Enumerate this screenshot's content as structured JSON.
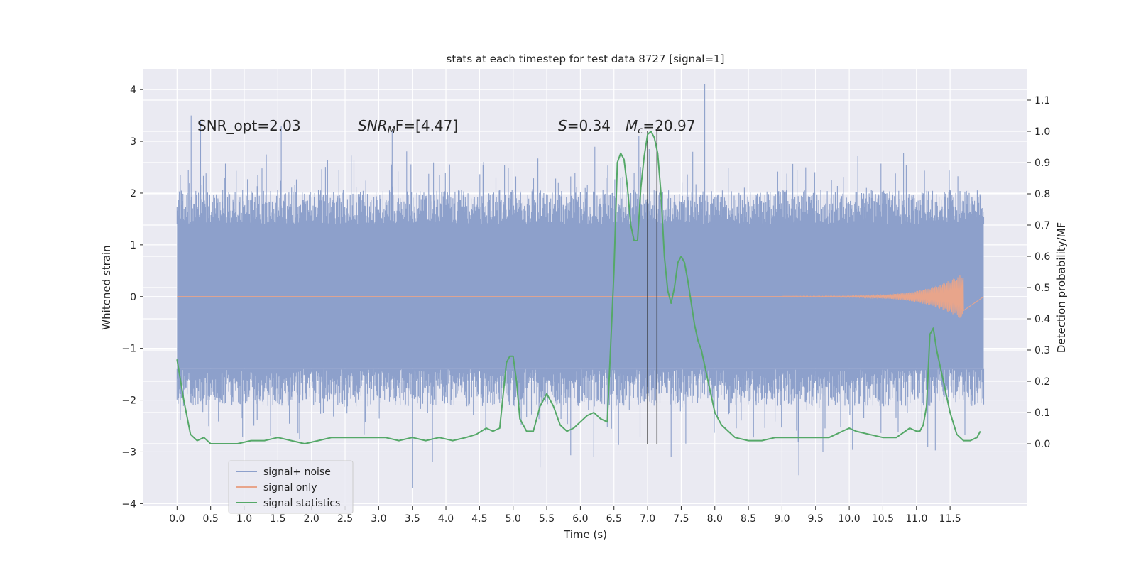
{
  "chart_data": {
    "type": "line",
    "title": "stats at each timestep for test data 8727 [signal=1]",
    "xlabel": "Time (s)",
    "ylabel": "Whitened strain",
    "ylabel_right": "Detection probability/MF",
    "xlim": [
      -0.5,
      12.65
    ],
    "ylim": [
      -4.05,
      4.4
    ],
    "ylim_right": [
      -0.2,
      1.2
    ],
    "x_ticks": [
      "0.0",
      "0.5",
      "1.0",
      "1.5",
      "2.0",
      "2.5",
      "3.0",
      "3.5",
      "4.0",
      "4.5",
      "5.0",
      "5.5",
      "6.0",
      "6.5",
      "7.0",
      "7.5",
      "8.0",
      "8.5",
      "9.0",
      "9.5",
      "10.0",
      "10.5",
      "11.0",
      "11.5"
    ],
    "y_ticks": [
      "−4",
      "−3",
      "−2",
      "−1",
      "0",
      "1",
      "2",
      "3",
      "4"
    ],
    "y_ticks_right": [
      "0.0",
      "0.1",
      "0.2",
      "0.3",
      "0.4",
      "0.5",
      "0.6",
      "0.7",
      "0.8",
      "0.9",
      "1.0",
      "1.1"
    ],
    "grid": true,
    "legend_position": "lower-left",
    "annotations": {
      "snr_opt": "SNR_opt=2.03",
      "snr_mf_base": "SNR",
      "snr_mf_sub": "M",
      "snr_mf_rest": "F=[4.47]",
      "s_var": "S",
      "s_rest": "=0.34",
      "mc_var": "M",
      "mc_sub": "c",
      "mc_rest": "=20.97"
    },
    "vertical_lines_x": [
      7.0,
      7.14
    ],
    "series": [
      {
        "name": "signal+ noise",
        "axis": "left",
        "color": "#8da0cb",
        "band": {
          "x_start": 0.0,
          "x_end": 12.0,
          "inner_low": -1.4,
          "inner_high": 1.4,
          "envelope_high": 2.0,
          "envelope_low": -2.0,
          "spike_max": 4.1,
          "spike_min": -3.7
        }
      },
      {
        "name": "signal only",
        "axis": "left",
        "color": "#e8a58b",
        "chirp": {
          "x_start": 9.0,
          "x_end": 11.7,
          "peak_amplitude": 0.45
        }
      },
      {
        "name": "signal statistics",
        "axis": "right",
        "color": "#55a868",
        "x": [
          0.0,
          0.1,
          0.2,
          0.3,
          0.4,
          0.5,
          0.7,
          0.9,
          1.1,
          1.3,
          1.5,
          1.7,
          1.9,
          2.1,
          2.3,
          2.5,
          2.7,
          2.9,
          3.1,
          3.3,
          3.5,
          3.7,
          3.9,
          4.1,
          4.3,
          4.45,
          4.6,
          4.7,
          4.8,
          4.9,
          4.95,
          5.0,
          5.05,
          5.1,
          5.2,
          5.3,
          5.4,
          5.5,
          5.6,
          5.7,
          5.8,
          5.9,
          6.0,
          6.1,
          6.2,
          6.3,
          6.4,
          6.5,
          6.55,
          6.6,
          6.65,
          6.7,
          6.75,
          6.8,
          6.85,
          6.9,
          6.95,
          7.0,
          7.05,
          7.1,
          7.15,
          7.2,
          7.25,
          7.3,
          7.35,
          7.4,
          7.45,
          7.5,
          7.55,
          7.6,
          7.65,
          7.7,
          7.75,
          7.8,
          7.85,
          7.9,
          8.0,
          8.1,
          8.2,
          8.3,
          8.5,
          8.7,
          8.9,
          9.1,
          9.3,
          9.5,
          9.7,
          9.9,
          10.0,
          10.1,
          10.3,
          10.5,
          10.7,
          10.9,
          11.0,
          11.05,
          11.1,
          11.15,
          11.2,
          11.25,
          11.3,
          11.4,
          11.5,
          11.6,
          11.7,
          11.8,
          11.9,
          11.95
        ],
        "values": [
          0.27,
          0.14,
          0.03,
          0.01,
          0.02,
          0.0,
          0.0,
          0.0,
          0.01,
          0.01,
          0.02,
          0.01,
          0.0,
          0.01,
          0.02,
          0.02,
          0.02,
          0.02,
          0.02,
          0.01,
          0.02,
          0.01,
          0.02,
          0.01,
          0.02,
          0.03,
          0.05,
          0.04,
          0.05,
          0.26,
          0.28,
          0.28,
          0.2,
          0.08,
          0.04,
          0.04,
          0.12,
          0.16,
          0.12,
          0.06,
          0.04,
          0.05,
          0.07,
          0.09,
          0.1,
          0.08,
          0.07,
          0.55,
          0.9,
          0.93,
          0.91,
          0.82,
          0.7,
          0.65,
          0.65,
          0.82,
          0.92,
          0.99,
          1.0,
          0.98,
          0.93,
          0.8,
          0.6,
          0.49,
          0.45,
          0.5,
          0.58,
          0.6,
          0.58,
          0.52,
          0.45,
          0.38,
          0.33,
          0.3,
          0.25,
          0.2,
          0.1,
          0.06,
          0.04,
          0.02,
          0.01,
          0.01,
          0.02,
          0.02,
          0.02,
          0.02,
          0.02,
          0.04,
          0.05,
          0.04,
          0.03,
          0.02,
          0.02,
          0.05,
          0.04,
          0.04,
          0.06,
          0.12,
          0.35,
          0.37,
          0.3,
          0.2,
          0.1,
          0.03,
          0.01,
          0.01,
          0.02,
          0.04
        ]
      }
    ]
  }
}
